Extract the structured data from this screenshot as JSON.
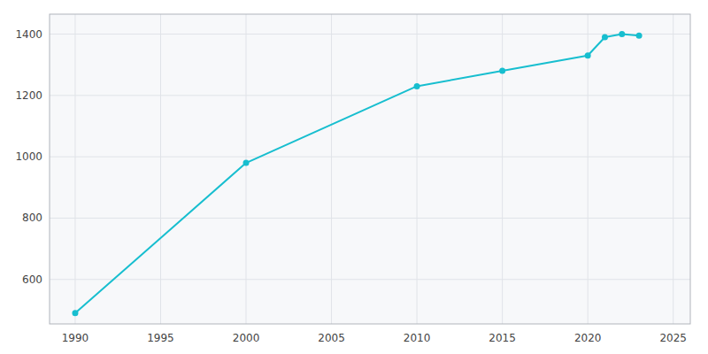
{
  "chart_data": {
    "type": "line",
    "x": [
      1990,
      2000,
      2010,
      2015,
      2020,
      2021,
      2022,
      2023
    ],
    "values": [
      490,
      980,
      1230,
      1280,
      1330,
      1390,
      1400,
      1395
    ],
    "color": "#17becf",
    "marker": "circle",
    "xlim": [
      1988.5,
      2026
    ],
    "ylim": [
      455,
      1465
    ],
    "xticks": [
      1990,
      1995,
      2000,
      2005,
      2010,
      2015,
      2020,
      2025
    ],
    "yticks": [
      600,
      800,
      1000,
      1200,
      1400
    ],
    "grid": true
  }
}
